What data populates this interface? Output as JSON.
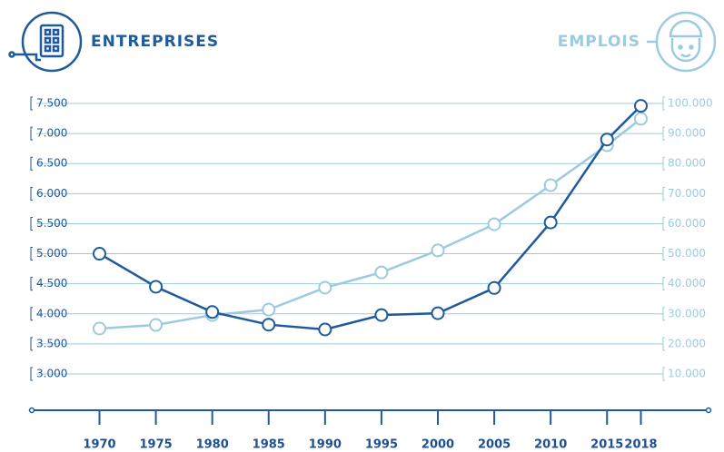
{
  "chart_data": {
    "type": "line",
    "x": [
      1970,
      1975,
      1980,
      1985,
      1990,
      1995,
      2000,
      2005,
      2010,
      2015,
      2018
    ],
    "xticks": [
      1970,
      1975,
      1980,
      1985,
      1990,
      1995,
      2000,
      2005,
      2010,
      2015,
      2018
    ],
    "xlim": [
      1964,
      2024
    ],
    "series": [
      {
        "name": "ENTREPRISES",
        "color": "#1f5a9a",
        "axis": "y",
        "values": [
          5000,
          4450,
          4030,
          3820,
          3740,
          3980,
          4010,
          4430,
          5520,
          6900,
          7460
        ]
      },
      {
        "name": "EMPLOIS",
        "color": "#9ccbe1",
        "axis": "y2",
        "values": [
          25100,
          26300,
          29600,
          31400,
          38700,
          43800,
          51100,
          59800,
          72800,
          86100,
          94900
        ]
      }
    ],
    "ylim": [
      3000,
      7500
    ],
    "yticks": [
      {
        "value": 3000,
        "label": "3.000"
      },
      {
        "value": 3500,
        "label": "3.500"
      },
      {
        "value": 4000,
        "label": "4.000"
      },
      {
        "value": 4500,
        "label": "4.500"
      },
      {
        "value": 5000,
        "label": "5.000"
      },
      {
        "value": 5500,
        "label": "5.500"
      },
      {
        "value": 6000,
        "label": "6.000"
      },
      {
        "value": 6500,
        "label": "6.500"
      },
      {
        "value": 7000,
        "label": "7.000"
      },
      {
        "value": 7500,
        "label": "7.500"
      }
    ],
    "y2lim": [
      10000,
      100000
    ],
    "y2ticks": [
      {
        "value": 10000,
        "label": "10.000"
      },
      {
        "value": 20000,
        "label": "20.000"
      },
      {
        "value": 30000,
        "label": "30.000"
      },
      {
        "value": 40000,
        "label": "40.000"
      },
      {
        "value": 50000,
        "label": "50.000"
      },
      {
        "value": 60000,
        "label": "60.000"
      },
      {
        "value": 70000,
        "label": "70.000"
      },
      {
        "value": 80000,
        "label": "80.000"
      },
      {
        "value": 90000,
        "label": "90.000"
      },
      {
        "value": 100000,
        "label": "100.000"
      }
    ],
    "grid": true
  }
}
